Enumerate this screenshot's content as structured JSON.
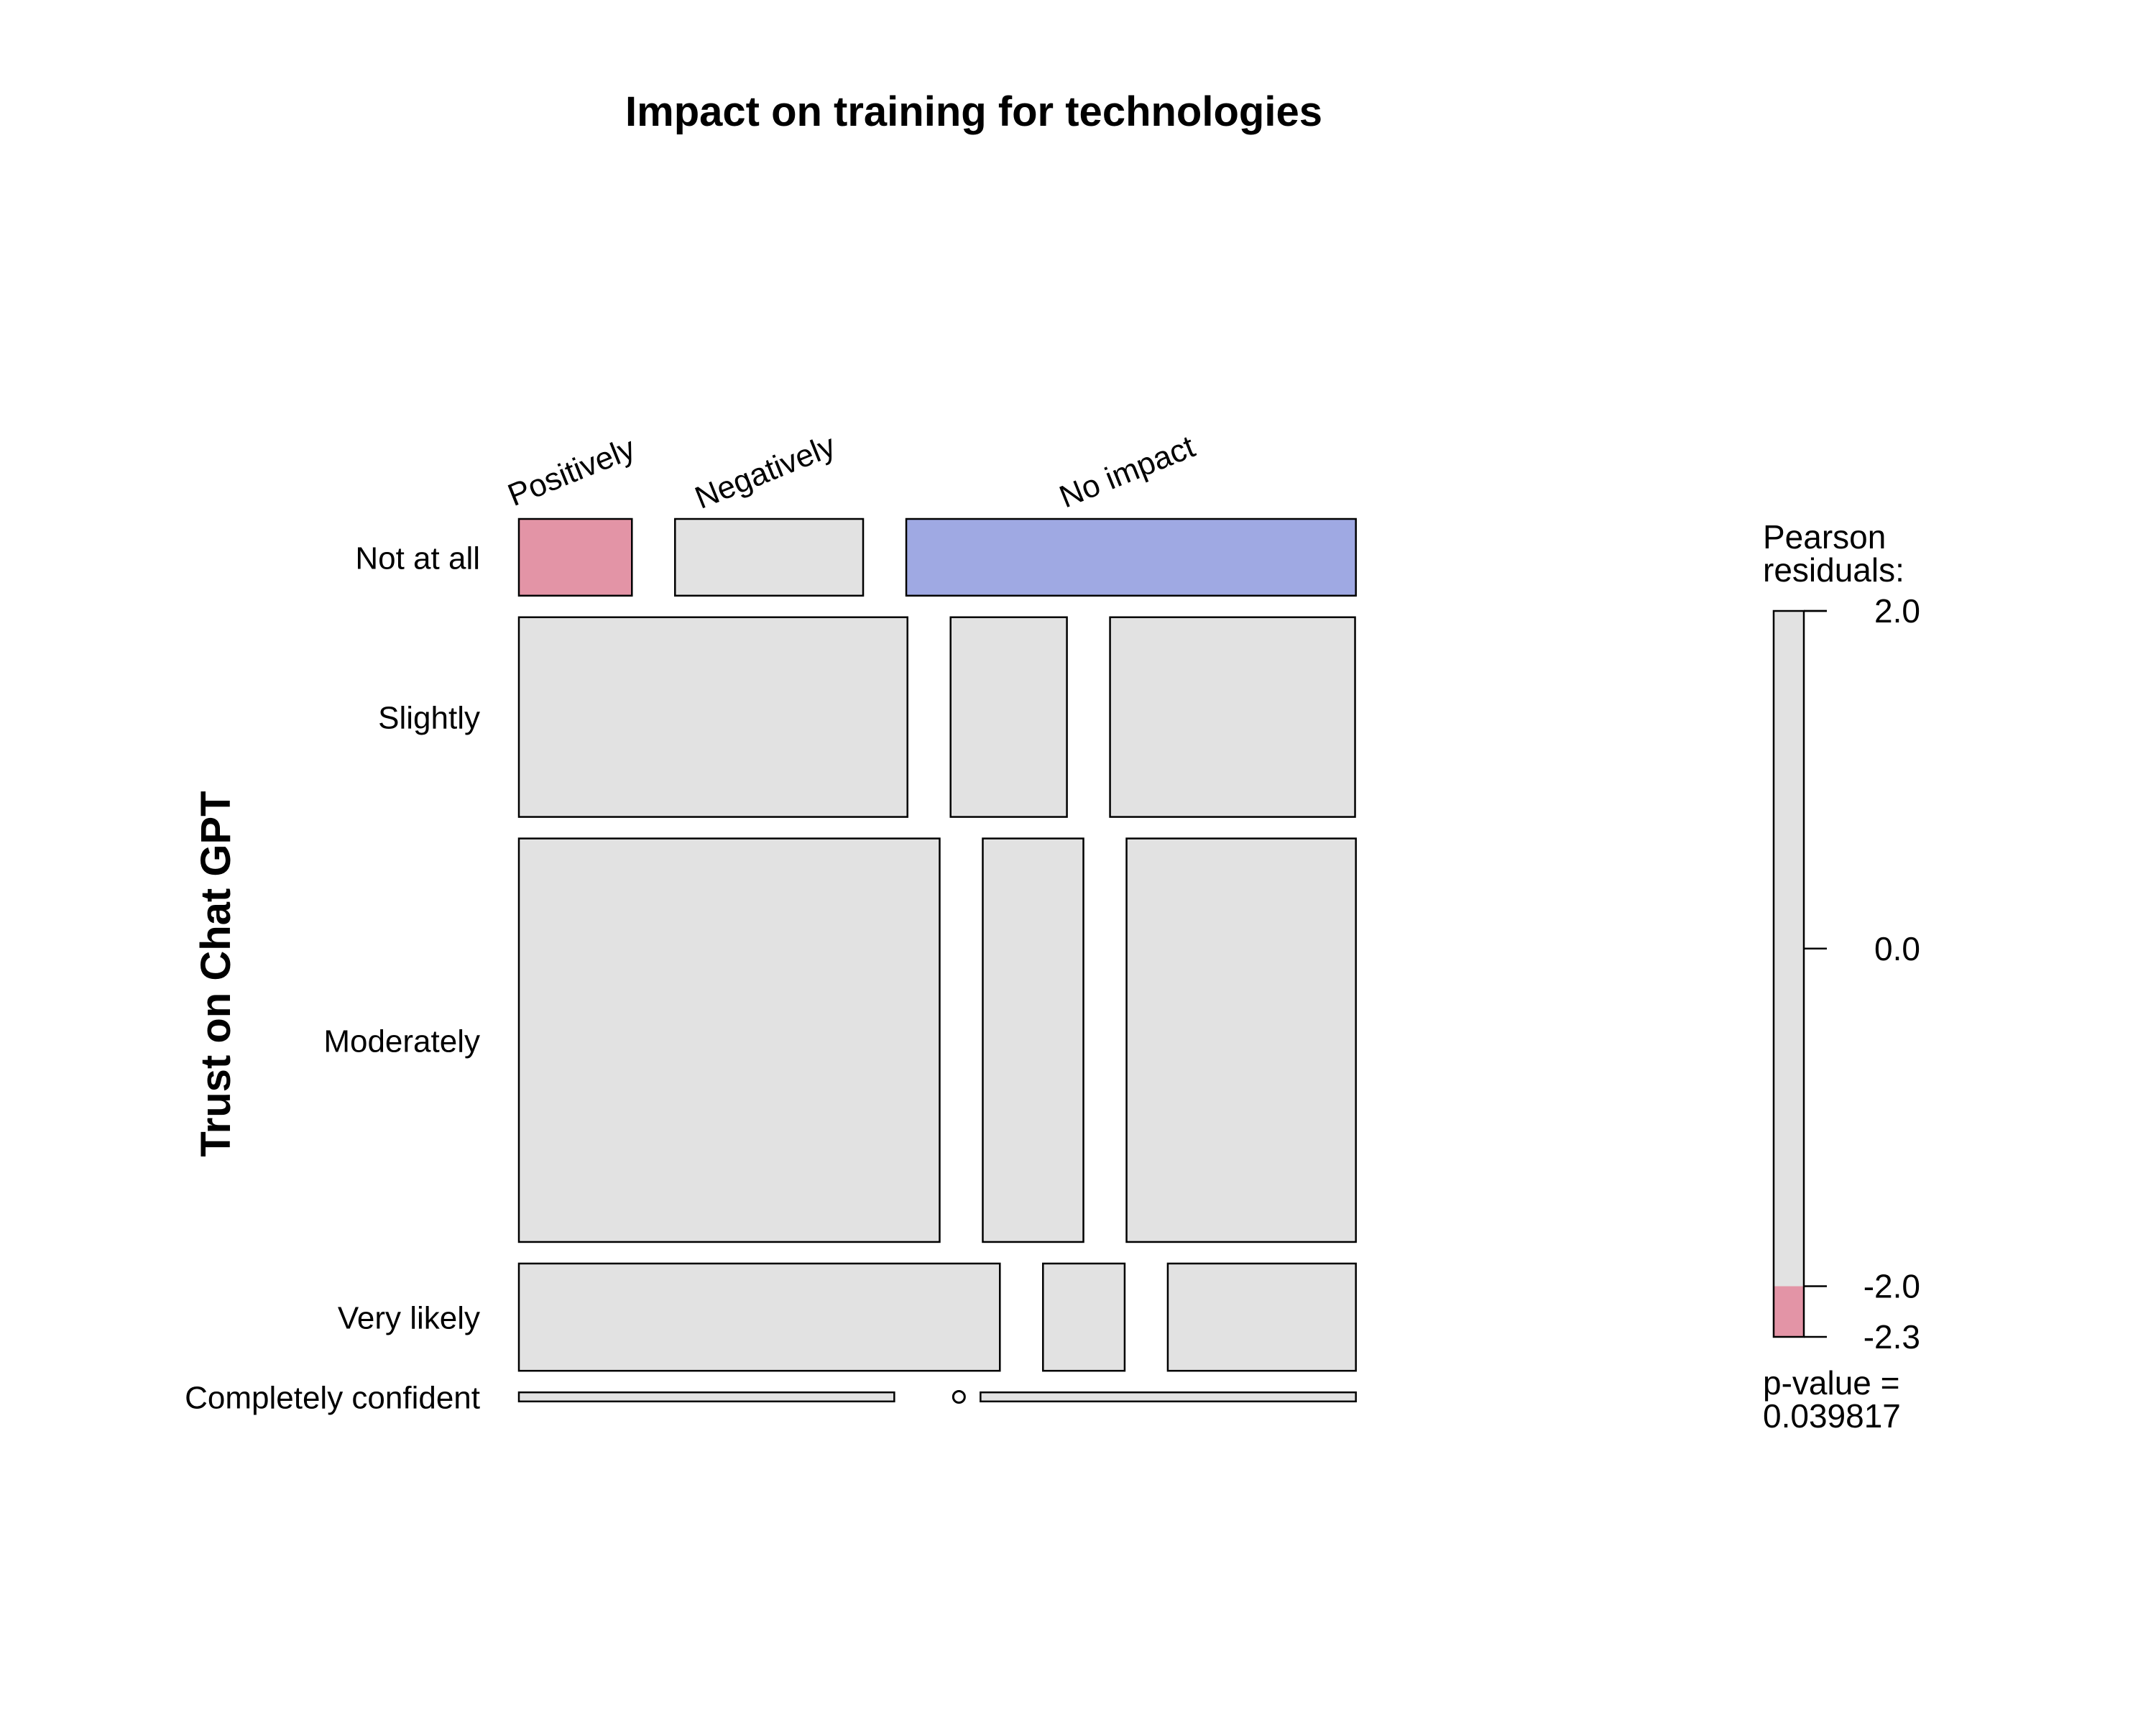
{
  "chart_data": {
    "type": "mosaic",
    "title": "Impact on training for technologies",
    "ylabel": "Trust on Chat GPT",
    "xlabel": "",
    "column_categories": [
      "Positively",
      "Negatively",
      "No impact"
    ],
    "row_categories": [
      "Not at all",
      "Slightly",
      "Moderately",
      "Very likely",
      "Completely confident"
    ],
    "row_proportions": [
      0.093,
      0.242,
      0.489,
      0.13,
      0.011
    ],
    "cells": [
      {
        "row": "Not at all",
        "col": "Positively",
        "proportion": 0.137,
        "residual_level": "negative"
      },
      {
        "row": "Not at all",
        "col": "Negatively",
        "proportion": 0.228,
        "residual_level": "neutral"
      },
      {
        "row": "Not at all",
        "col": "No impact",
        "proportion": 0.545,
        "residual_level": "positive"
      },
      {
        "row": "Slightly",
        "col": "Positively",
        "proportion": 0.471,
        "residual_level": "neutral"
      },
      {
        "row": "Slightly",
        "col": "Negatively",
        "proportion": 0.141,
        "residual_level": "neutral"
      },
      {
        "row": "Slightly",
        "col": "No impact",
        "proportion": 0.297,
        "residual_level": "neutral"
      },
      {
        "row": "Moderately",
        "col": "Positively",
        "proportion": 0.51,
        "residual_level": "neutral"
      },
      {
        "row": "Moderately",
        "col": "Negatively",
        "proportion": 0.122,
        "residual_level": "neutral"
      },
      {
        "row": "Moderately",
        "col": "No impact",
        "proportion": 0.278,
        "residual_level": "neutral"
      },
      {
        "row": "Very likely",
        "col": "Positively",
        "proportion": 0.583,
        "residual_level": "neutral"
      },
      {
        "row": "Very likely",
        "col": "Negatively",
        "proportion": 0.099,
        "residual_level": "neutral"
      },
      {
        "row": "Very likely",
        "col": "No impact",
        "proportion": 0.228,
        "residual_level": "neutral"
      },
      {
        "row": "Completely confident",
        "col": "Positively",
        "proportion": 0.455,
        "residual_level": "neutral"
      },
      {
        "row": "Completely confident",
        "col": "Negatively",
        "proportion": 0.0,
        "residual_level": "neutral"
      },
      {
        "row": "Completely confident",
        "col": "No impact",
        "proportion": 0.455,
        "residual_level": "neutral"
      }
    ],
    "legend": {
      "title_line1": "Pearson",
      "title_line2": "residuals:",
      "range": [
        -2.3,
        2.0
      ],
      "ticks": [
        "2.0",
        "0.0",
        "-2.0",
        "-2.3"
      ],
      "tick_values": [
        2.0,
        0.0,
        -2.0,
        -2.3
      ],
      "pvalue_line1": "p-value =",
      "pvalue_line2": "0.039817"
    },
    "colors": {
      "positive": "#9fa9e3",
      "negative": "#e394a6",
      "neutral": "#e2e2e2",
      "stroke": "#000000"
    }
  }
}
